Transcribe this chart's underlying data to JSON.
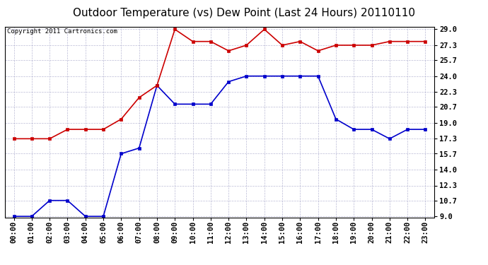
{
  "title": "Outdoor Temperature (vs) Dew Point (Last 24 Hours) 20110110",
  "copyright": "Copyright 2011 Cartronics.com",
  "x_labels": [
    "00:00",
    "01:00",
    "02:00",
    "03:00",
    "04:00",
    "05:00",
    "06:00",
    "07:00",
    "08:00",
    "09:00",
    "10:00",
    "11:00",
    "12:00",
    "13:00",
    "14:00",
    "15:00",
    "16:00",
    "17:00",
    "18:00",
    "19:00",
    "20:00",
    "21:00",
    "22:00",
    "23:00"
  ],
  "temp_data": [
    9.0,
    9.0,
    10.7,
    10.7,
    9.0,
    9.0,
    15.7,
    16.3,
    23.0,
    21.0,
    21.0,
    21.0,
    23.4,
    24.0,
    24.0,
    24.0,
    24.0,
    24.0,
    19.4,
    18.3,
    18.3,
    17.3,
    18.3,
    18.3
  ],
  "dew_data": [
    17.3,
    17.3,
    17.3,
    18.3,
    18.3,
    18.3,
    19.4,
    21.7,
    23.0,
    29.0,
    27.7,
    27.7,
    26.7,
    27.3,
    29.0,
    27.3,
    27.7,
    26.7,
    27.3,
    27.3,
    27.3,
    27.7,
    27.7,
    27.7
  ],
  "temp_color": "#0000cc",
  "dew_color": "#cc0000",
  "bg_color": "#ffffff",
  "grid_color": "#aaaacc",
  "ylim_min": 9.0,
  "ylim_max": 29.0,
  "yticks": [
    9.0,
    10.7,
    12.3,
    14.0,
    15.7,
    17.3,
    19.0,
    20.7,
    22.3,
    24.0,
    25.7,
    27.3,
    29.0
  ],
  "title_fontsize": 11,
  "copyright_fontsize": 6.5,
  "tick_fontsize": 7.5,
  "ylabel_fontsize": 8
}
